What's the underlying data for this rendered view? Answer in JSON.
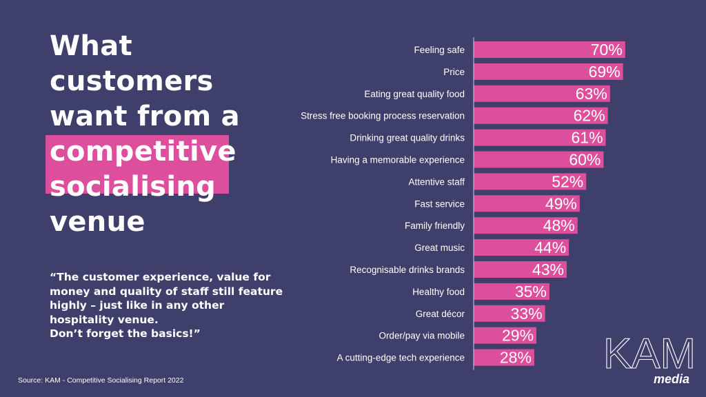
{
  "title": {
    "lines": [
      "What",
      "customers",
      "want from a",
      "competitive",
      "socialising",
      "venue"
    ]
  },
  "quote": {
    "lines": [
      "“The customer experience, value for",
      "money and quality of staff still feature",
      "highly – just like in any other",
      "hospitality venue.",
      "Don’t forget the basics!”"
    ]
  },
  "source": "Source: KAM - Competitive Socialising Report 2022",
  "logo": {
    "main": "KAM",
    "sub": "media"
  },
  "colors": {
    "background": "#3f3f6b",
    "bar": "#dd4f9c",
    "text": "#ffffff",
    "axis": "#cfcfdf"
  },
  "chart_data": {
    "type": "bar",
    "orientation": "horizontal",
    "categories": [
      "Feeling safe",
      "Price",
      "Eating great quality food",
      "Stress free booking process reservation",
      "Drinking great quality drinks",
      "Having a memorable experience",
      "Attentive staff",
      "Fast service",
      "Family friendly",
      "Great music",
      "Recognisable drinks brands",
      "Healthy food",
      "Great décor",
      "Order/pay via mobile",
      "A cutting-edge tech experience"
    ],
    "values": [
      70,
      69,
      63,
      62,
      61,
      60,
      52,
      49,
      48,
      44,
      43,
      35,
      33,
      29,
      28
    ],
    "value_labels": [
      "70%",
      "69%",
      "63%",
      "62%",
      "61%",
      "60%",
      "52%",
      "49%",
      "48%",
      "44%",
      "43%",
      "35%",
      "33%",
      "29%",
      "28%"
    ],
    "unit": "%",
    "xlim": [
      0,
      100
    ],
    "grid": false,
    "legend": "none"
  }
}
